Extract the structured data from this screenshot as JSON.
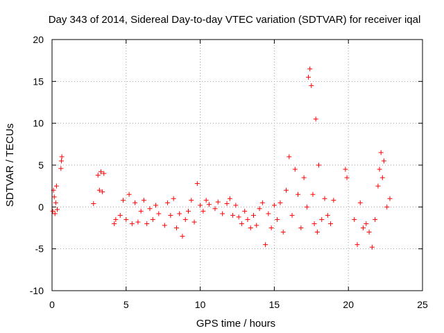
{
  "chart_data": {
    "type": "scatter",
    "title": "Day 343 of 2014, Sidereal Day-to-day VTEC variation (SDTVAR) for receiver iqal",
    "xlabel": "GPS time / hours",
    "ylabel": "SDTVAR / TECUs",
    "xlim": [
      0,
      25
    ],
    "ylim": [
      -10,
      20
    ],
    "xticks": [
      0,
      5,
      10,
      15,
      20,
      25
    ],
    "yticks": [
      -10,
      -5,
      0,
      5,
      10,
      15,
      20
    ],
    "xtick_labels": [
      "0",
      "5",
      "10",
      "15",
      "20",
      "25"
    ],
    "ytick_labels": [
      "-10",
      "-5",
      "0",
      "5",
      "10",
      "15",
      "20"
    ],
    "grid": true,
    "marker": "+",
    "series": [
      {
        "name": "SDTVAR",
        "color": "#ff0000",
        "x": [
          0.05,
          0.1,
          0.15,
          0.2,
          0.25,
          0.3,
          0.35,
          0.6,
          0.63,
          0.66,
          2.8,
          3.1,
          3.2,
          3.3,
          3.4,
          3.5,
          4.2,
          4.3,
          4.6,
          4.8,
          5.0,
          5.2,
          5.4,
          5.6,
          5.8,
          6.0,
          6.2,
          6.4,
          6.6,
          6.8,
          7.0,
          7.2,
          7.6,
          7.8,
          8.0,
          8.2,
          8.4,
          8.6,
          8.8,
          9.0,
          9.2,
          9.4,
          9.6,
          9.8,
          10.0,
          10.2,
          10.4,
          10.6,
          11.0,
          11.2,
          11.5,
          11.8,
          12.0,
          12.2,
          12.4,
          12.6,
          12.8,
          13.0,
          13.2,
          13.4,
          13.6,
          13.8,
          14.0,
          14.2,
          14.4,
          14.6,
          14.8,
          15.0,
          15.2,
          15.4,
          15.6,
          15.8,
          16.0,
          16.2,
          16.4,
          16.6,
          16.8,
          17.0,
          17.2,
          17.3,
          17.4,
          17.5,
          17.6,
          17.7,
          17.8,
          17.9,
          18.0,
          18.2,
          18.4,
          18.6,
          18.8,
          19.0,
          19.8,
          19.9,
          20.4,
          20.6,
          20.8,
          21.0,
          21.2,
          21.4,
          21.6,
          21.8,
          22.0,
          22.1,
          22.2,
          22.3,
          22.4,
          22.6,
          22.8
        ],
        "y": [
          -0.5,
          2.0,
          1.2,
          -0.8,
          0.5,
          2.5,
          -0.3,
          4.6,
          5.5,
          6.0,
          0.4,
          3.8,
          2.0,
          4.2,
          1.8,
          4.0,
          -2.0,
          -1.5,
          -1.0,
          0.8,
          -1.5,
          1.5,
          -2.0,
          0.5,
          -1.8,
          -0.5,
          0.8,
          -2.0,
          -0.2,
          -1.5,
          0.2,
          -0.8,
          -2.2,
          0.5,
          -1.0,
          1.0,
          -2.5,
          -0.8,
          -3.5,
          -1.5,
          -0.5,
          0.8,
          -1.8,
          2.8,
          0.2,
          -0.5,
          0.8,
          0.3,
          -0.2,
          0.6,
          -0.8,
          0.4,
          1.0,
          -1.0,
          0.2,
          -1.2,
          -2.0,
          -0.5,
          -1.5,
          -2.5,
          -1.0,
          -2.2,
          -0.2,
          0.5,
          -4.5,
          -0.8,
          -2.5,
          0.2,
          -1.5,
          0.5,
          -3.0,
          2.0,
          6.0,
          -1.0,
          4.5,
          1.5,
          -2.5,
          3.5,
          0.0,
          15.5,
          16.5,
          14.5,
          1.5,
          -2.0,
          10.5,
          -3.0,
          5.0,
          -1.5,
          1.0,
          -1.0,
          -2.0,
          0.8,
          4.5,
          3.5,
          -1.5,
          -4.5,
          0.5,
          -2.5,
          -2.0,
          -3.0,
          -4.8,
          -1.5,
          2.5,
          4.5,
          6.5,
          3.5,
          5.5,
          0.0,
          1.0
        ]
      }
    ]
  }
}
